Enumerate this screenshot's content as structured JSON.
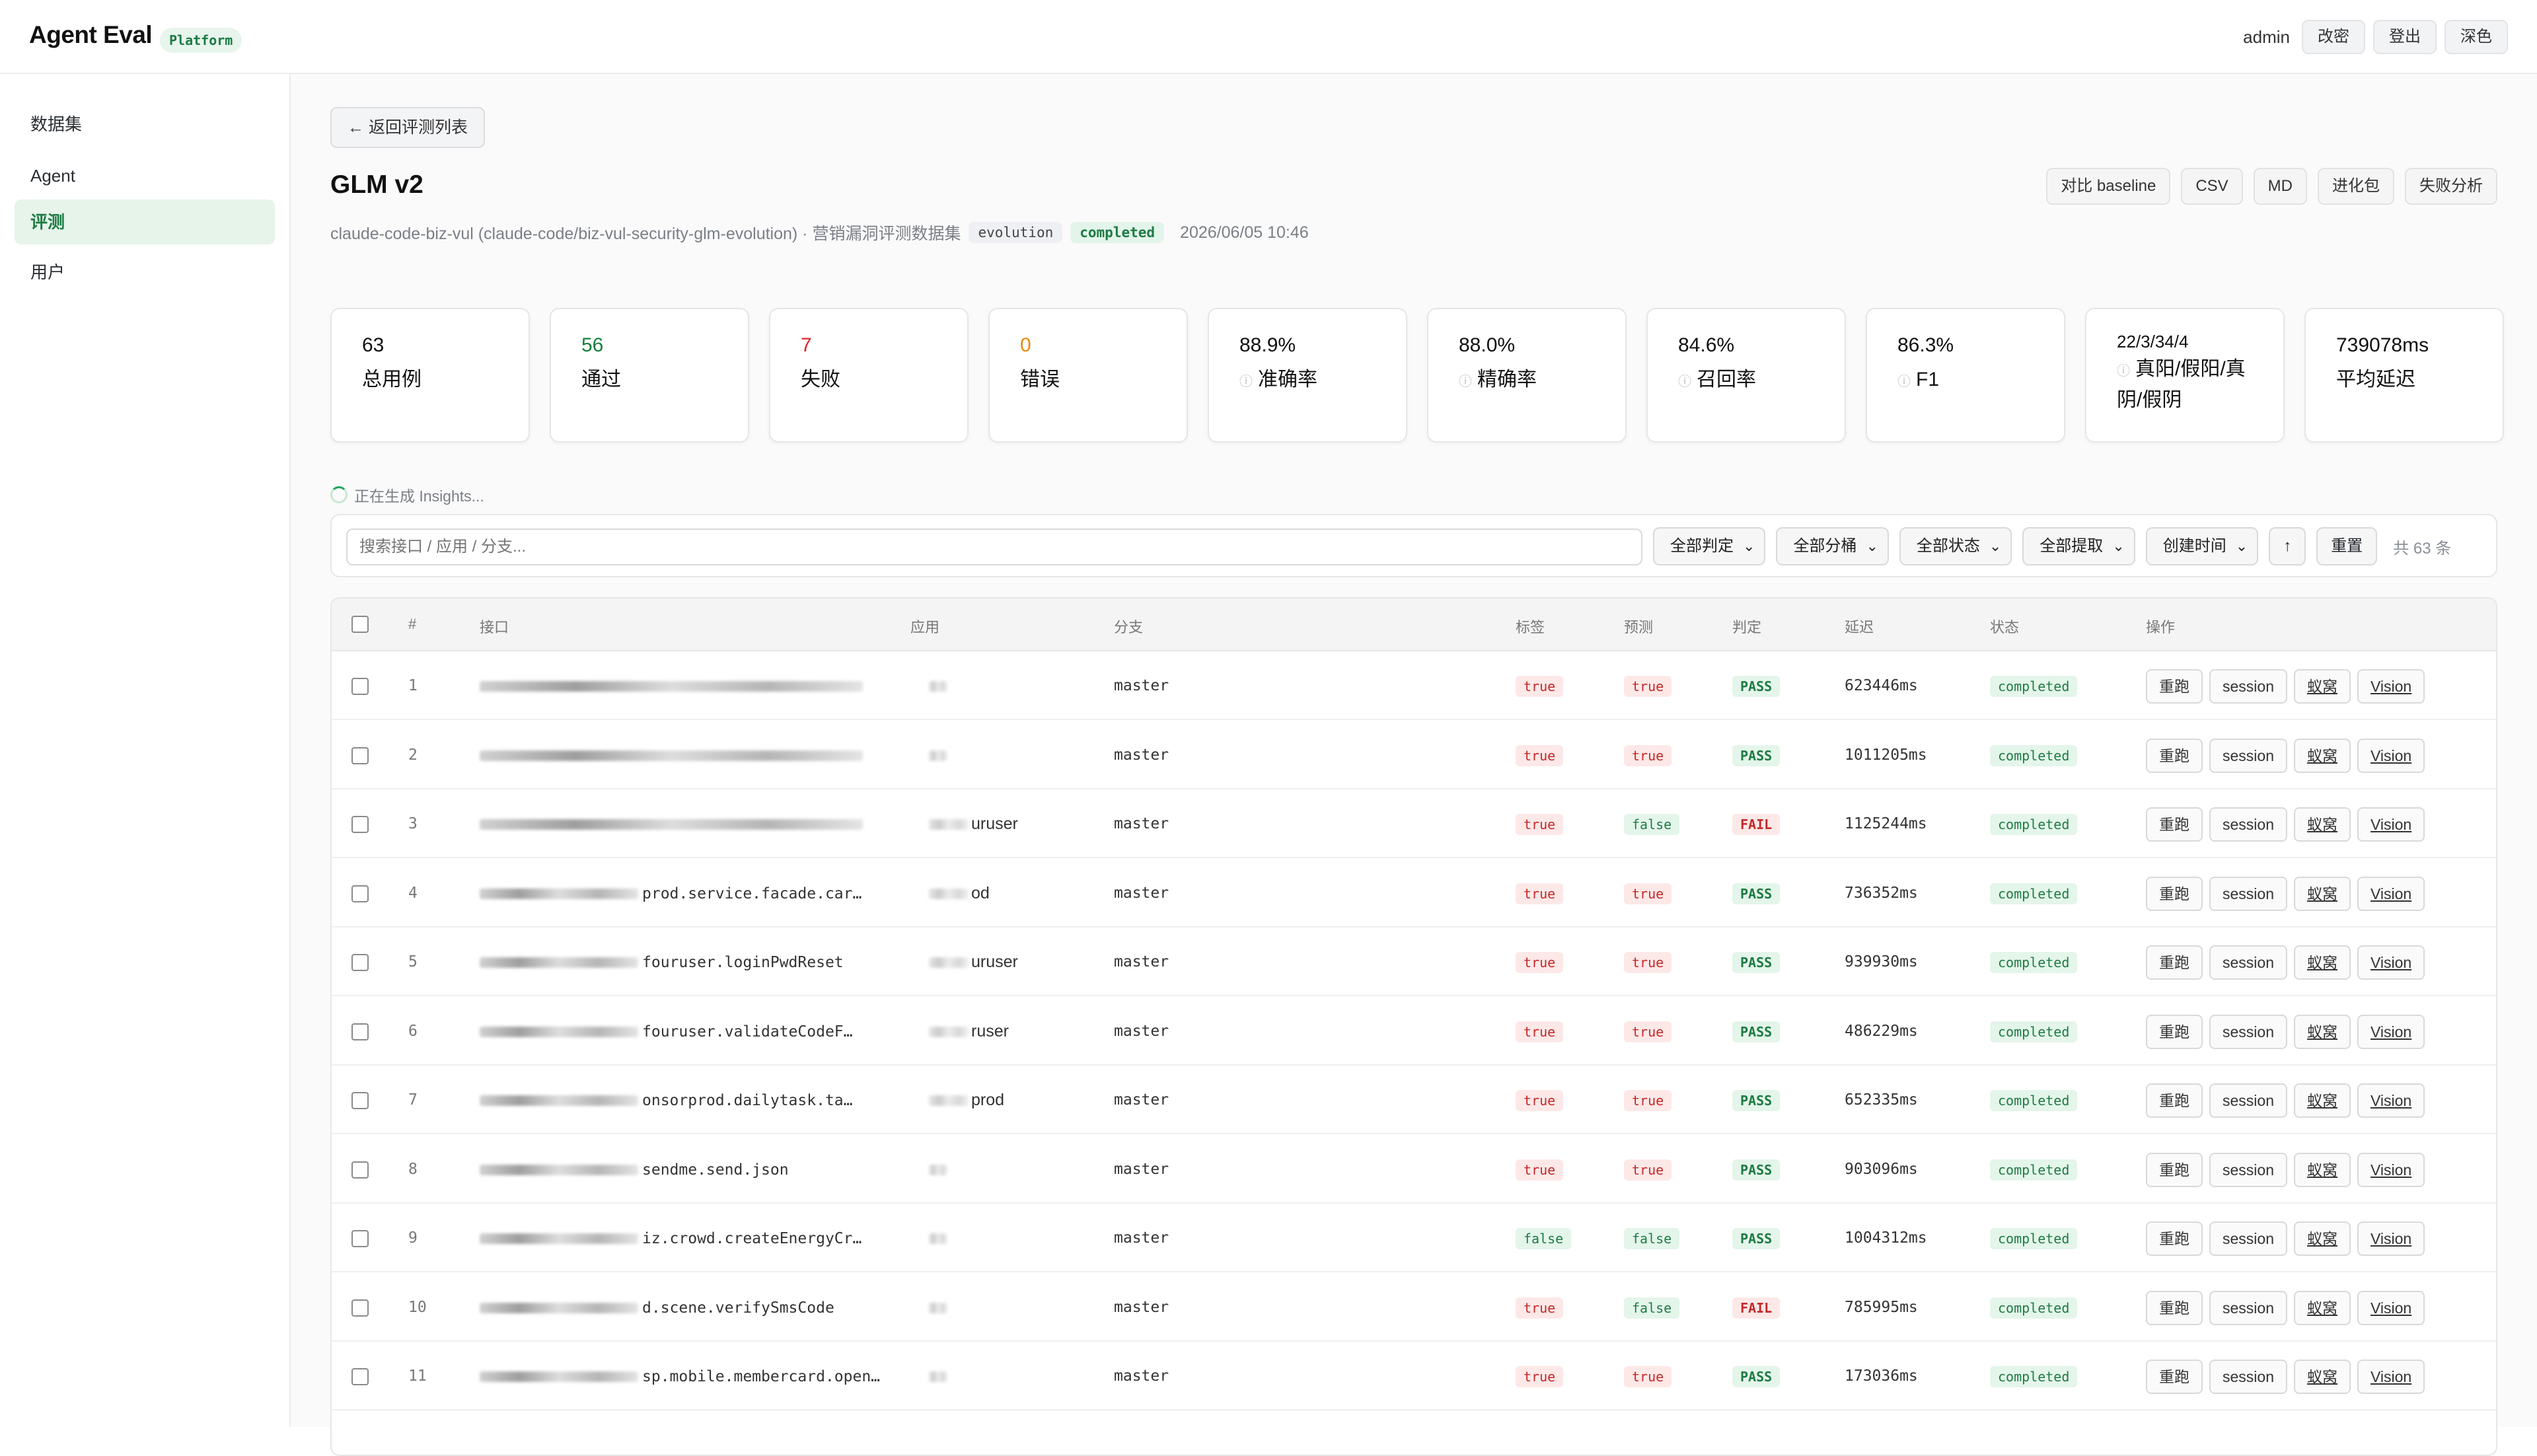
{
  "topbar": {
    "logo": "Agent Eval",
    "platform_badge": "Platform",
    "user": "admin",
    "change_pwd": "改密",
    "logout": "登出",
    "theme": "深色"
  },
  "sidebar": {
    "items": [
      {
        "label": "数据集",
        "active": false
      },
      {
        "label": "Agent",
        "active": false
      },
      {
        "label": "评测",
        "active": true
      },
      {
        "label": "用户",
        "active": false
      }
    ]
  },
  "header": {
    "back": "← 返回评测列表",
    "title": "GLM v2",
    "subtitle": "claude-code-biz-vul (claude-code/biz-vul-security-glm-evolution) · 营销漏洞评测数据集",
    "tag_evolution": "evolution",
    "tag_status": "completed",
    "date": "2026/06/05 10:46",
    "actions": [
      "对比 baseline",
      "CSV",
      "MD",
      "进化包",
      "失败分析"
    ]
  },
  "stats": [
    {
      "value": "63",
      "label": "总用例",
      "color": "#111111",
      "info": false
    },
    {
      "value": "56",
      "label": "通过",
      "color": "#15803d",
      "info": false
    },
    {
      "value": "7",
      "label": "失败",
      "color": "#dc2626",
      "info": false
    },
    {
      "value": "0",
      "label": "错误",
      "color": "#ea8a0c",
      "info": false
    },
    {
      "value": "88.9%",
      "label": "准确率",
      "color": "#111111",
      "info": true
    },
    {
      "value": "88.0%",
      "label": "精确率",
      "color": "#111111",
      "info": true
    },
    {
      "value": "84.6%",
      "label": "召回率",
      "color": "#111111",
      "info": true
    },
    {
      "value": "86.3%",
      "label": "F1",
      "color": "#111111",
      "info": true
    },
    {
      "value": "22/3/34/4",
      "label": "真阳/假阳/真阴/假阴",
      "color": "#111111",
      "info": true
    },
    {
      "value": "739078ms",
      "label": "平均延迟",
      "color": "#111111",
      "info": false
    }
  ],
  "insights": "正在生成 Insights...",
  "filters": {
    "search_placeholder": "搜索接口 / 应用 / 分支...",
    "selects": [
      "全部判定",
      "全部分桶",
      "全部状态",
      "全部提取",
      "创建时间"
    ],
    "sort": "↑",
    "reset": "重置",
    "count": "共 63 条"
  },
  "table": {
    "headers": [
      "#",
      "接口",
      "应用",
      "分支",
      "标签",
      "预测",
      "判定",
      "延迟",
      "状态",
      "操作"
    ],
    "op_labels": [
      "重跑",
      "session",
      "蚁窝",
      "Vision"
    ],
    "rows": [
      {
        "n": "1",
        "iface": "",
        "app": "",
        "branch": "master",
        "label": "true",
        "pred": "true",
        "verdict": "PASS",
        "latency": "623446ms",
        "status": "completed"
      },
      {
        "n": "2",
        "iface": "",
        "app": "",
        "branch": "master",
        "label": "true",
        "pred": "true",
        "verdict": "PASS",
        "latency": "1011205ms",
        "status": "completed"
      },
      {
        "n": "3",
        "iface": "",
        "app": "uruser",
        "branch": "master",
        "label": "true",
        "pred": "false",
        "verdict": "FAIL",
        "latency": "1125244ms",
        "status": "completed"
      },
      {
        "n": "4",
        "iface": "prod.service.facade.car…",
        "app": "od",
        "branch": "master",
        "label": "true",
        "pred": "true",
        "verdict": "PASS",
        "latency": "736352ms",
        "status": "completed"
      },
      {
        "n": "5",
        "iface": "fouruser.loginPwdReset",
        "app": "uruser",
        "branch": "master",
        "label": "true",
        "pred": "true",
        "verdict": "PASS",
        "latency": "939930ms",
        "status": "completed"
      },
      {
        "n": "6",
        "iface": "fouruser.validateCodeF…",
        "app": "ruser",
        "branch": "master",
        "label": "true",
        "pred": "true",
        "verdict": "PASS",
        "latency": "486229ms",
        "status": "completed"
      },
      {
        "n": "7",
        "iface": "onsorprod.dailytask.ta…",
        "app": "prod",
        "branch": "master",
        "label": "true",
        "pred": "true",
        "verdict": "PASS",
        "latency": "652335ms",
        "status": "completed"
      },
      {
        "n": "8",
        "iface": "sendme.send.json",
        "app": "",
        "branch": "master",
        "label": "true",
        "pred": "true",
        "verdict": "PASS",
        "latency": "903096ms",
        "status": "completed"
      },
      {
        "n": "9",
        "iface": "iz.crowd.createEnergyCr…",
        "app": "",
        "branch": "master",
        "label": "false",
        "pred": "false",
        "verdict": "PASS",
        "latency": "1004312ms",
        "status": "completed"
      },
      {
        "n": "10",
        "iface": "d.scene.verifySmsCode",
        "app": "",
        "branch": "master",
        "label": "true",
        "pred": "false",
        "verdict": "FAIL",
        "latency": "785995ms",
        "status": "completed"
      },
      {
        "n": "11",
        "iface": "sp.mobile.membercard.open…",
        "app": "",
        "branch": "master",
        "label": "true",
        "pred": "true",
        "verdict": "PASS",
        "latency": "173036ms",
        "status": "completed"
      }
    ]
  }
}
